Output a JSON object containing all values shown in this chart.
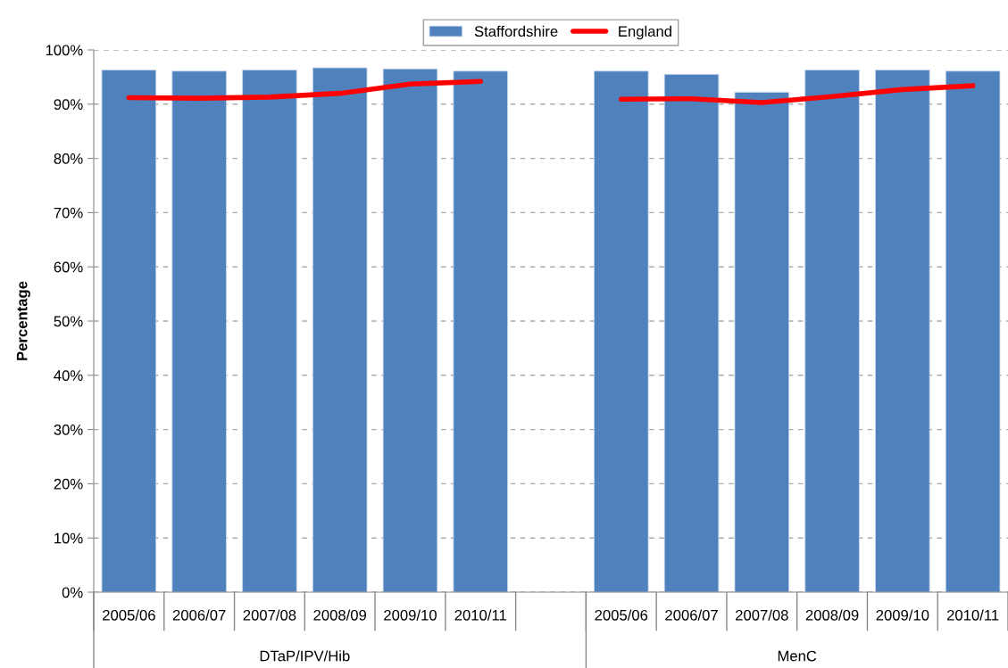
{
  "chart_data": {
    "type": "bar",
    "ylabel": "Percentage",
    "categories": [
      "2005/06",
      "2006/07",
      "2007/08",
      "2008/09",
      "2009/10",
      "2010/11",
      null,
      "2005/06",
      "2006/07",
      "2007/08",
      "2008/09",
      "2009/10",
      "2010/11"
    ],
    "series": [
      {
        "name": "Staffordshire",
        "color": "#4f81bd",
        "values": [
          96.3,
          96.1,
          96.3,
          96.7,
          96.5,
          96.1,
          null,
          96.1,
          95.5,
          92.2,
          96.3,
          96.3,
          96.1
        ]
      },
      {
        "name": "England",
        "type": "line",
        "color": "#ff0000",
        "values": [
          91.2,
          91.1,
          91.3,
          92.0,
          93.7,
          94.2,
          null,
          90.9,
          91.0,
          90.3,
          91.4,
          92.7,
          93.4
        ]
      }
    ],
    "annotations": [
      "DTaP/IPV/Hib",
      "MenC"
    ],
    "ylim": [
      0,
      100
    ],
    "yticks": [
      {
        "value": 0,
        "label": "0%"
      },
      {
        "value": 10,
        "label": "10%"
      },
      {
        "value": 20,
        "label": "20%"
      },
      {
        "value": 30,
        "label": "30%"
      },
      {
        "value": 40,
        "label": "40%"
      },
      {
        "value": 50,
        "label": "50%"
      },
      {
        "value": 60,
        "label": "60%"
      },
      {
        "value": 70,
        "label": "70%"
      },
      {
        "value": 80,
        "label": "80%"
      },
      {
        "value": 90,
        "label": "90%"
      },
      {
        "value": 100,
        "label": "100%"
      }
    ],
    "grid": "y",
    "legend": "top",
    "marker": "none",
    "line_style": "solid"
  }
}
